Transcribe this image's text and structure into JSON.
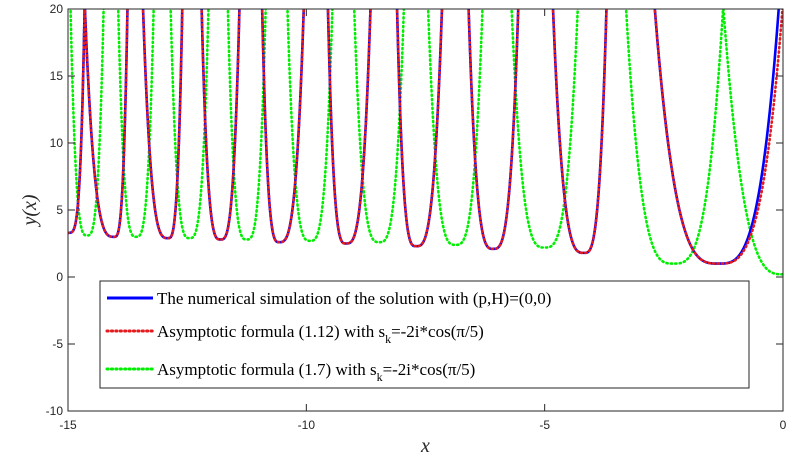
{
  "chart_data": {
    "type": "line",
    "xlabel": "x",
    "ylabel": "y(x)",
    "xlim": [
      -15,
      0
    ],
    "ylim": [
      -10,
      20
    ],
    "x_ticks": [
      "-15",
      "-10",
      "-5",
      "0"
    ],
    "y_ticks": [
      "-10",
      "-5",
      "0",
      "5",
      "10",
      "15",
      "20"
    ],
    "x_tick_values": [
      -15,
      -10,
      -5,
      0
    ],
    "y_tick_values": [
      -10,
      -5,
      0,
      5,
      10,
      15,
      20
    ],
    "grid": false,
    "legend_position": "bottom",
    "series": [
      {
        "name": "The numerical simulation of the solution with (p,H)=(0,0)",
        "legend_main": "The numerical simulation of the solution with (p,H)=(0,0)",
        "legend_sub": "",
        "legend_tail": "",
        "color": "#0000ff",
        "style": "solid",
        "poles": [
          -14.65,
          -13.75,
          -13.43,
          -12.6,
          -12.2,
          -11.4,
          -10.93,
          -10.05,
          -9.55,
          -8.65,
          -8.1,
          -7.15,
          -6.6,
          -5.55,
          -4.83,
          -3.7,
          -2.7,
          -0.08
        ],
        "minima": [
          [
            -15.0,
            3.3
          ],
          [
            -14.03,
            3.0
          ],
          [
            -12.9,
            2.9
          ],
          [
            -11.8,
            2.8
          ],
          [
            -10.57,
            2.6
          ],
          [
            -9.17,
            2.5
          ],
          [
            -7.7,
            2.3
          ],
          [
            -6.08,
            2.1
          ],
          [
            -4.17,
            1.8
          ],
          [
            -1.35,
            1.0
          ]
        ]
      },
      {
        "name": "Asymptotic formula (1.12) with s_k=-2i*cos(π/5)",
        "legend_main": "Asymptotic formula (1.12) with s",
        "legend_sub": "k",
        "legend_tail": "=-2i*cos(π/5)",
        "color": "#e41a1c",
        "style": "dotted",
        "poles": [
          -14.65,
          -13.75,
          -13.43,
          -12.6,
          -12.2,
          -11.4,
          -10.93,
          -10.05,
          -9.55,
          -8.65,
          -8.1,
          -7.15,
          -6.6,
          -5.55,
          -4.83,
          -3.7,
          -2.7,
          0.0
        ],
        "minima": [
          [
            -15.0,
            3.3
          ],
          [
            -14.03,
            3.0
          ],
          [
            -12.9,
            2.9
          ],
          [
            -11.8,
            2.8
          ],
          [
            -10.57,
            2.6
          ],
          [
            -9.17,
            2.5
          ],
          [
            -7.7,
            2.3
          ],
          [
            -6.08,
            2.1
          ],
          [
            -4.17,
            1.8
          ],
          [
            -1.35,
            1.0
          ]
        ]
      },
      {
        "name": "Asymptotic formula (1.7) with s_k=-2i*cos(π/5)",
        "legend_main": "Asymptotic formula (1.7) with s",
        "legend_sub": "k",
        "legend_tail": "=-2i*cos(π/5)",
        "color": "#00ee00",
        "style": "dotted",
        "poles": [
          -14.95,
          -14.25,
          -13.95,
          -13.2,
          -12.85,
          -12.05,
          -11.65,
          -10.85,
          -10.4,
          -9.45,
          -9.0,
          -7.95,
          -7.45,
          -6.3,
          -5.7,
          -4.3,
          -3.3,
          -1.25
        ],
        "minima": [
          [
            -14.6,
            3.1
          ],
          [
            -13.57,
            3.0
          ],
          [
            -12.45,
            2.9
          ],
          [
            -11.25,
            2.8
          ],
          [
            -9.92,
            2.7
          ],
          [
            -8.47,
            2.6
          ],
          [
            -6.87,
            2.4
          ],
          [
            -5.0,
            2.2
          ],
          [
            -2.3,
            1.0
          ]
        ],
        "tail": [
          [
            -1.25,
            20
          ],
          [
            0.0,
            0.2
          ]
        ]
      }
    ]
  }
}
